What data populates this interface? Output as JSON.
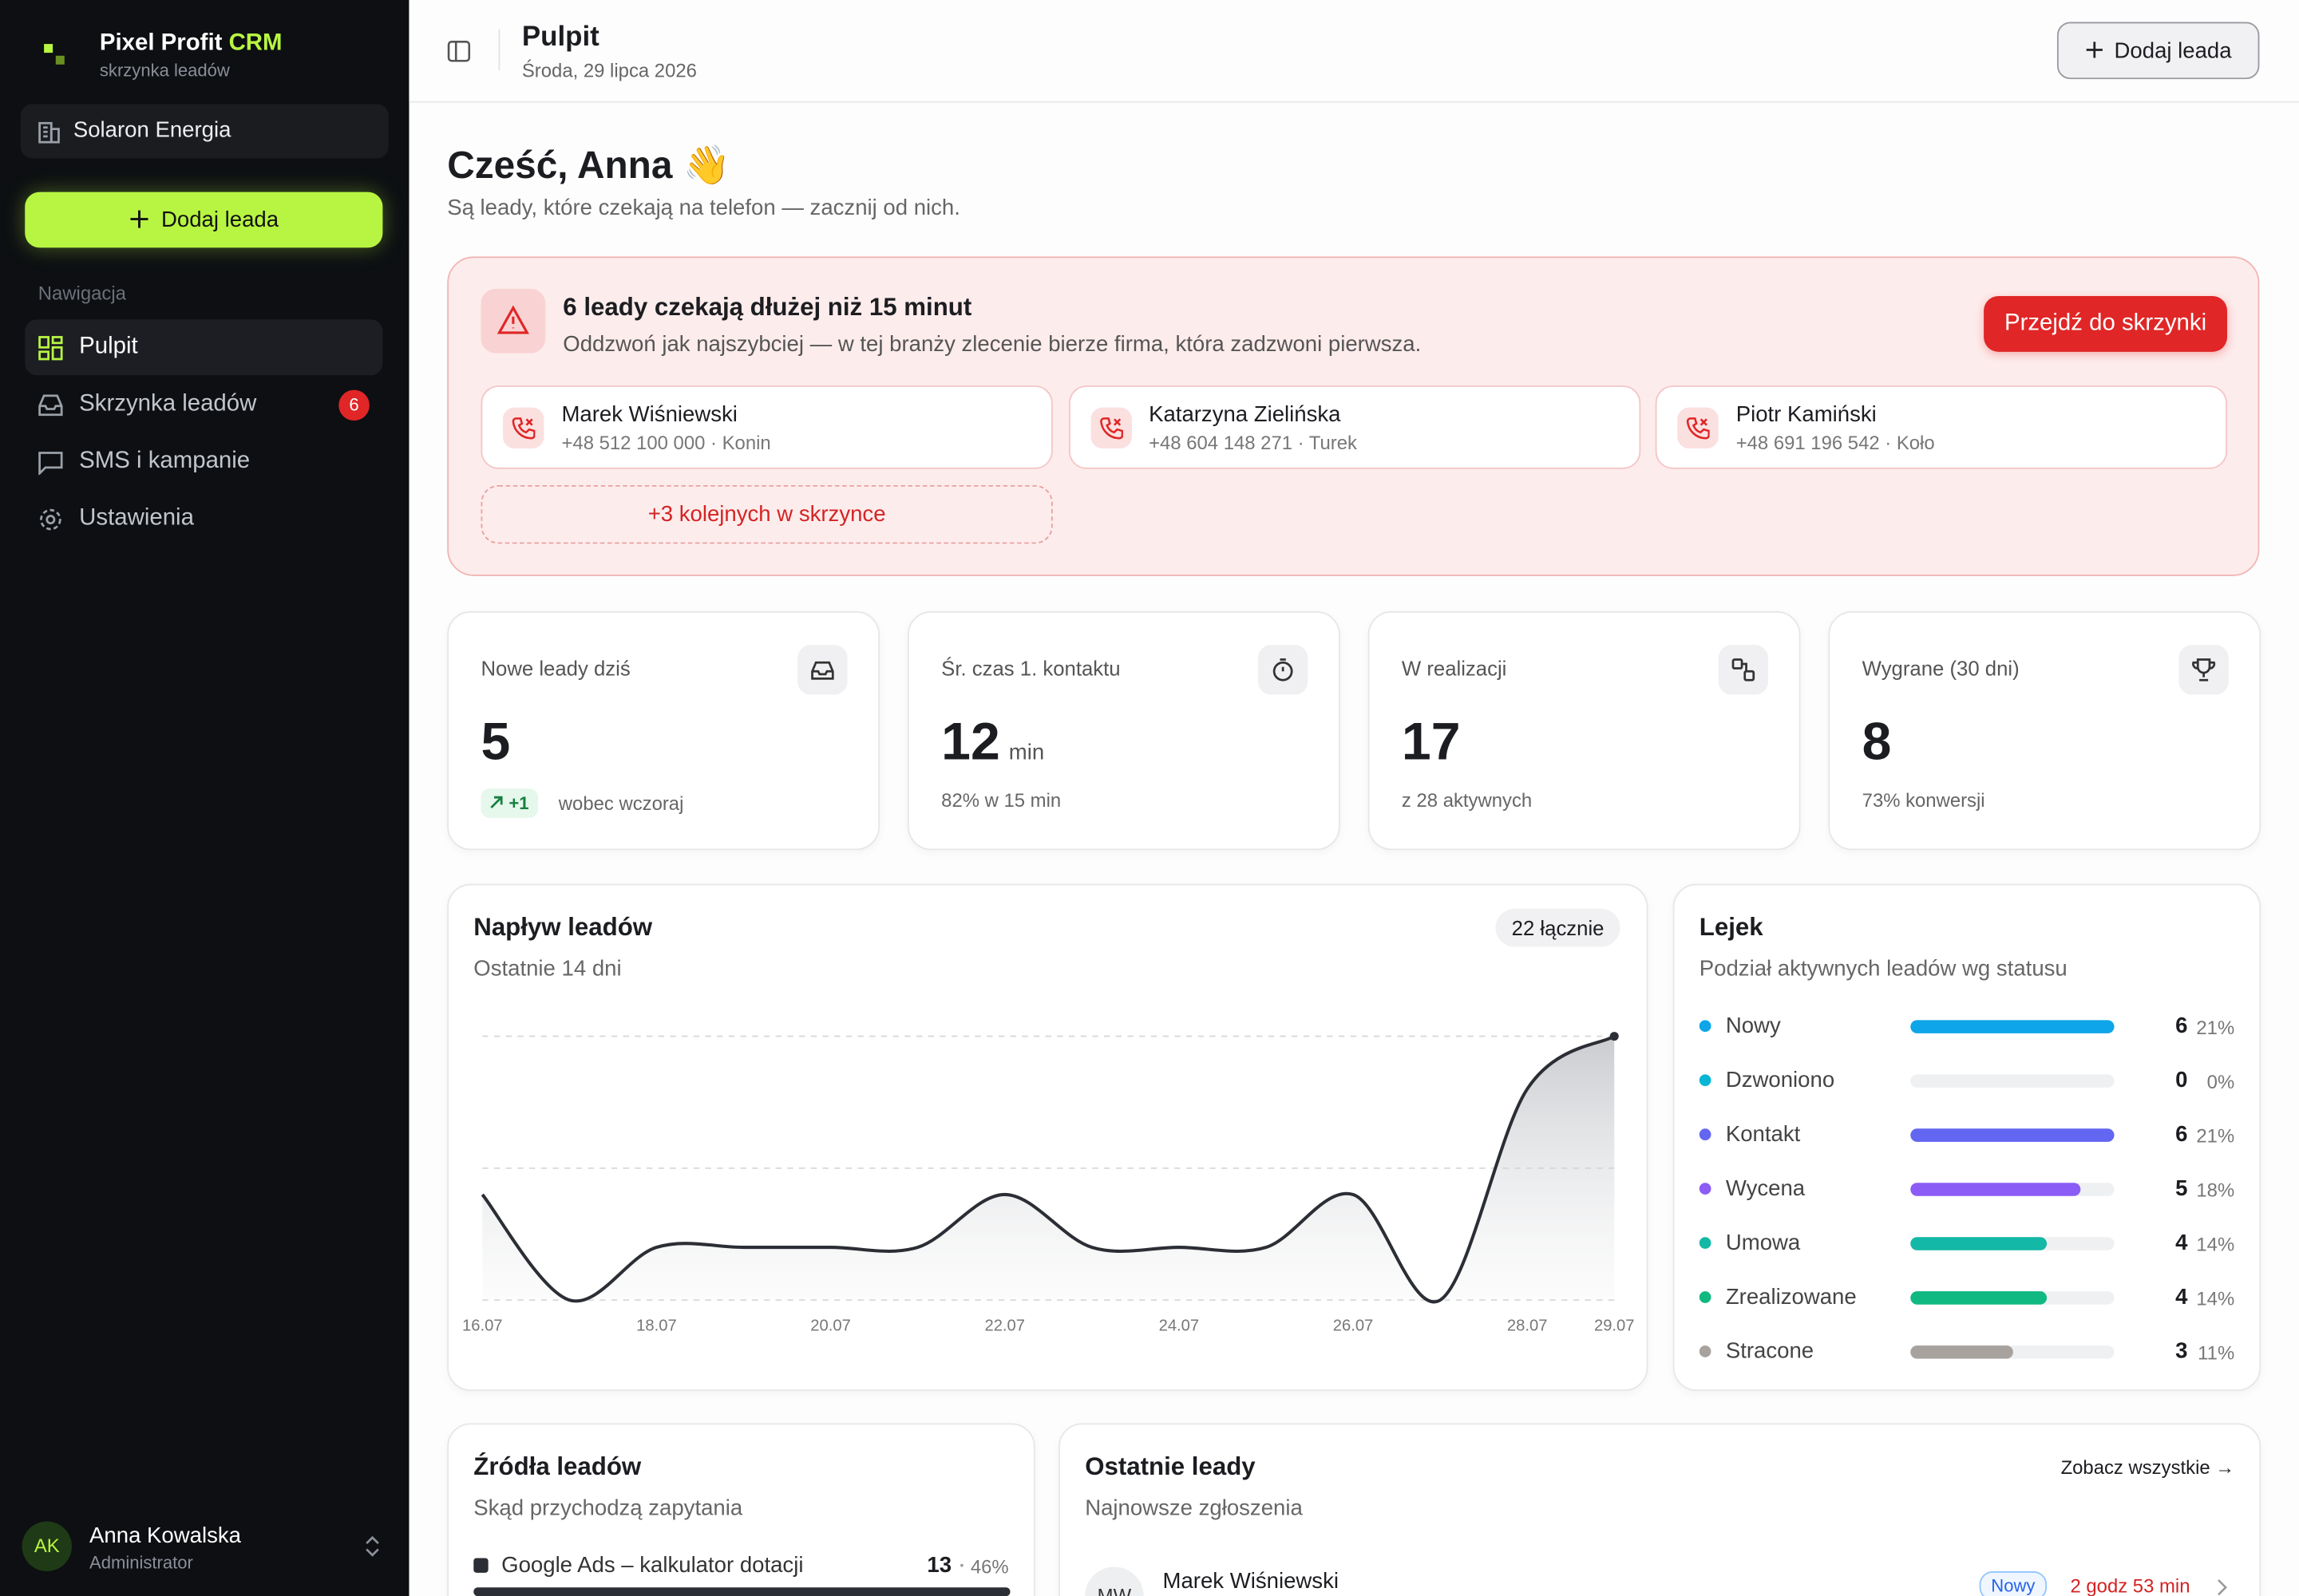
{
  "sidebar": {
    "brand": "Pixel Profit",
    "brand_accent": "CRM",
    "brand_sub": "skrzynka leadów",
    "workspace": "Solaron Energia",
    "add_button": "Dodaj leada",
    "nav_heading": "Nawigacja",
    "nav": [
      {
        "label": "Pulpit"
      },
      {
        "label": "Skrzynka leadów",
        "badge": 6
      },
      {
        "label": "SMS i kampanie"
      },
      {
        "label": "Ustawienia"
      }
    ],
    "user": {
      "initials": "AK",
      "name": "Anna Kowalska",
      "role": "Administrator"
    }
  },
  "header": {
    "title": "Pulpit",
    "date": "Środa, 29 lipca 2026",
    "button": "Dodaj leada"
  },
  "greeting": {
    "title": "Cześć, Anna 👋",
    "subtitle": "Są leady, które czekają na telefon — zacznij od nich."
  },
  "alert": {
    "title": "6 leady czekają dłużej niż 15 minut",
    "text": "Oddzwoń jak najszybciej — w tej branży zlecenie bierze firma, która zadzwoni pierwsza.",
    "button": "Przejdź do skrzynki",
    "leads": [
      {
        "name": "Marek Wiśniewski",
        "details": "+48 512 100 000 · Konin"
      },
      {
        "name": "Katarzyna Zielińska",
        "details": "+48 604 148 271 · Turek"
      },
      {
        "name": "Piotr Kamiński",
        "details": "+48 691 196 542 · Koło"
      }
    ],
    "more": "+3 kolejnych w skrzynce"
  },
  "kpis": [
    {
      "label": "Nowe leady dziś",
      "value": 5,
      "delta": "+1",
      "note": "wobec wczoraj"
    },
    {
      "label": "Śr. czas 1. kontaktu",
      "value": 12,
      "unit": "min",
      "note": "82% w 15 min"
    },
    {
      "label": "W realizacji",
      "value": 17,
      "note": "z 28 aktywnych"
    },
    {
      "label": "Wygrane (30 dni)",
      "value": 8,
      "note": "73% konwersji"
    }
  ],
  "chart_data": {
    "type": "line",
    "title": "Napływ leadów",
    "subtitle": "Ostatnie 14 dni",
    "badge": "22 łącznie",
    "categories": [
      "16.07",
      null,
      "18.07",
      null,
      "20.07",
      null,
      "22.07",
      null,
      "24.07",
      null,
      "26.07",
      null,
      "28.07",
      "29.07"
    ],
    "values": [
      2,
      0,
      1,
      1,
      1,
      1,
      2,
      1,
      1,
      1,
      2,
      0,
      4,
      5
    ],
    "color": "#2b2e34",
    "ylim": [
      0,
      5
    ]
  },
  "funnel": {
    "title": "Lejek",
    "subtitle": "Podział aktywnych leadów wg statusu",
    "items": [
      {
        "name": "Nowy",
        "color": "#0ea5e9",
        "count": 6,
        "share": "21%"
      },
      {
        "name": "Dzwoniono",
        "color": "#06b6d4",
        "count": 0,
        "share": "0%"
      },
      {
        "name": "Kontakt",
        "color": "#6366f1",
        "count": 6,
        "share": "21%"
      },
      {
        "name": "Wycena",
        "color": "#8b5cf6",
        "count": 5,
        "share": "18%"
      },
      {
        "name": "Umowa",
        "color": "#14b8a6",
        "count": 4,
        "share": "14%"
      },
      {
        "name": "Zrealizowane",
        "color": "#10b981",
        "count": 4,
        "share": "14%"
      },
      {
        "name": "Stracone",
        "color": "#a8a29e",
        "count": 3,
        "share": "11%"
      }
    ]
  },
  "sources": {
    "title": "Źródła leadów",
    "subtitle": "Skąd przychodzą zapytania",
    "items": [
      {
        "name": "Google Ads – kalkulator dotacji",
        "count": 13,
        "share": "46%"
      }
    ]
  },
  "recent": {
    "title": "Ostatnie leady",
    "subtitle": "Najnowsze zgłoszenia",
    "link": "Zobacz wszystkie →",
    "items": [
      {
        "initials": "MW",
        "name": "Marek Wiśniewski",
        "status": "Nowy",
        "age": "2 godz 53 min"
      }
    ]
  }
}
